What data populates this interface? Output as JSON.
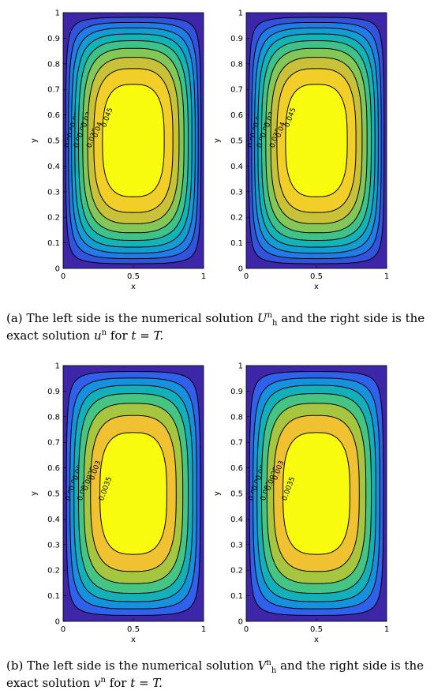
{
  "chart_data": [
    {
      "type": "contour",
      "panels": [
        {
          "xlabel": "x",
          "ylabel": "y",
          "xlim": [
            0,
            1
          ],
          "ylim": [
            0,
            1
          ],
          "xticks": [
            "0",
            "0.5",
            "1"
          ],
          "yticks": [
            "0",
            "0.1",
            "0.2",
            "0.3",
            "0.4",
            "0.5",
            "0.6",
            "0.7",
            "0.8",
            "0.9",
            "1"
          ],
          "levels": [
            0.005,
            0.01,
            0.015,
            0.02,
            0.025,
            0.03,
            0.035,
            0.04,
            0.045
          ],
          "level_labels": [
            "0.005",
            "0.01",
            "0.015",
            "0.02",
            "0.025",
            "0.03",
            "0.035",
            "0.04",
            "0.045"
          ],
          "peak": 0.05
        },
        {
          "xlabel": "x",
          "ylabel": "y",
          "xlim": [
            0,
            1
          ],
          "ylim": [
            0,
            1
          ],
          "xticks": [
            "0",
            "0.5",
            "1"
          ],
          "yticks": [
            "0",
            "0.1",
            "0.2",
            "0.3",
            "0.4",
            "0.5",
            "0.6",
            "0.7",
            "0.8",
            "0.9",
            "1"
          ],
          "levels": [
            0.005,
            0.01,
            0.015,
            0.02,
            0.025,
            0.03,
            0.035,
            0.04,
            0.045
          ],
          "level_labels": [
            "0.005",
            "0.01",
            "0.015",
            "0.02",
            "0.025",
            "0.03",
            "0.035",
            "0.04",
            "0.045"
          ],
          "peak": 0.05
        }
      ]
    },
    {
      "type": "contour",
      "panels": [
        {
          "xlabel": "x",
          "ylabel": "y",
          "xlim": [
            0,
            1
          ],
          "ylim": [
            0,
            1
          ],
          "xticks": [
            "0",
            "0.5",
            "1"
          ],
          "yticks": [
            "0",
            "0.1",
            "0.2",
            "0.3",
            "0.4",
            "0.5",
            "0.6",
            "0.7",
            "0.8",
            "0.9",
            "1"
          ],
          "levels": [
            0.0005,
            0.001,
            0.0015,
            0.002,
            0.0025,
            0.003,
            0.0035
          ],
          "level_labels": [
            "0.0005",
            "0.001",
            "0.0015",
            "0.002",
            "0.0025",
            "0.003",
            "0.0035"
          ],
          "peak": 0.004
        },
        {
          "xlabel": "x",
          "ylabel": "y",
          "xlim": [
            0,
            1
          ],
          "ylim": [
            0,
            1
          ],
          "xticks": [
            "0",
            "0.5",
            "1"
          ],
          "yticks": [
            "0",
            "0.1",
            "0.2",
            "0.3",
            "0.4",
            "0.5",
            "0.6",
            "0.7",
            "0.8",
            "0.9",
            "1"
          ],
          "levels": [
            0.0005,
            0.001,
            0.0015,
            0.002,
            0.0025,
            0.003,
            0.0035
          ],
          "level_labels": [
            "0.0005",
            "0.001",
            "0.0015",
            "0.002",
            "0.0025",
            "0.003",
            "0.0035"
          ],
          "peak": 0.004
        }
      ]
    }
  ],
  "captions": {
    "a": {
      "tag": "(a)",
      "t1": "The left side is the numerical solution",
      "sym1": "U",
      "sub1": "h",
      "sup1": "n",
      "t2": "and the right side is the exact solution",
      "sym2": "u",
      "sup2": "n",
      "t3": "for",
      "eq": "t = T."
    },
    "b": {
      "tag": "(b)",
      "t1": "The left side is the numerical solution",
      "sym1": "V",
      "sub1": "h",
      "sup1": "n",
      "t2": "and the right side is the exact solution",
      "sym2": "v",
      "sup2": "n",
      "t3": "for",
      "eq": "t = T."
    }
  },
  "colors": {
    "low": "#3e26a8",
    "high": "#f9fb0e",
    "contour": "#000000"
  }
}
